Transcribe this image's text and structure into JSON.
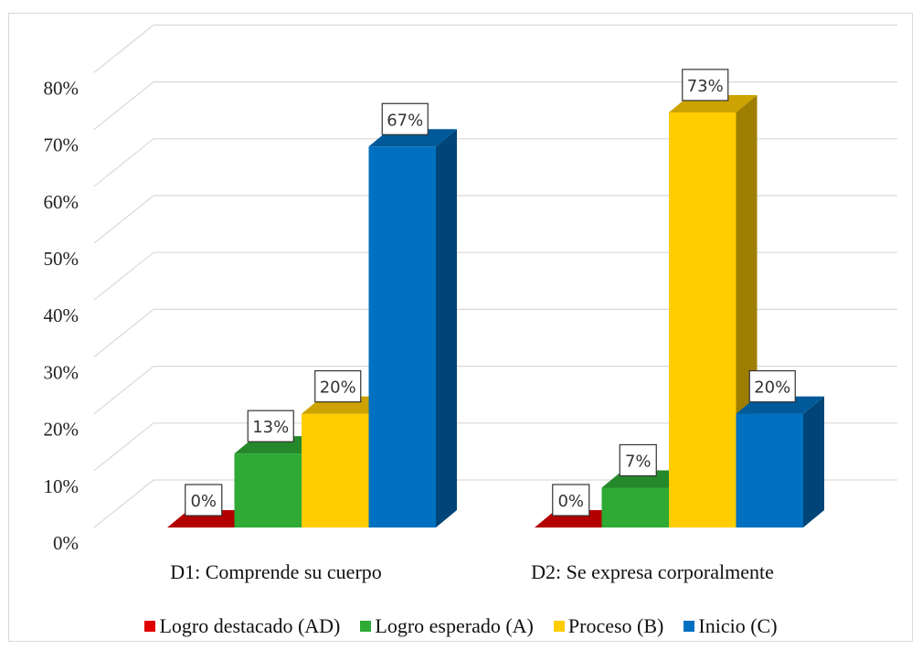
{
  "chart_data": {
    "type": "bar",
    "categories": [
      "D1: Comprende su cuerpo",
      "D2: Se expresa corporalmente"
    ],
    "series": [
      {
        "name": "Logro destacado (AD)",
        "values": [
          0,
          0
        ],
        "labels": [
          "0%",
          "0%"
        ],
        "color": "#e00000"
      },
      {
        "name": "Logro esperado (A)",
        "values": [
          13,
          7
        ],
        "labels": [
          "13%",
          "7%"
        ],
        "color": "#2eaa35"
      },
      {
        "name": "Proceso (B)",
        "values": [
          20,
          73
        ],
        "labels": [
          "20%",
          "73%"
        ],
        "color": "#ffcc00"
      },
      {
        "name": "Inicio (C)",
        "values": [
          67,
          20
        ],
        "labels": [
          "67%",
          "20%"
        ],
        "color": "#0070c0"
      }
    ],
    "y_ticks": [
      "0%",
      "10%",
      "20%",
      "30%",
      "40%",
      "50%",
      "60%",
      "70%",
      "80%"
    ],
    "ylim": [
      0,
      80
    ],
    "grid": true,
    "legend_position": "bottom",
    "style": "3d-clustered-column"
  }
}
